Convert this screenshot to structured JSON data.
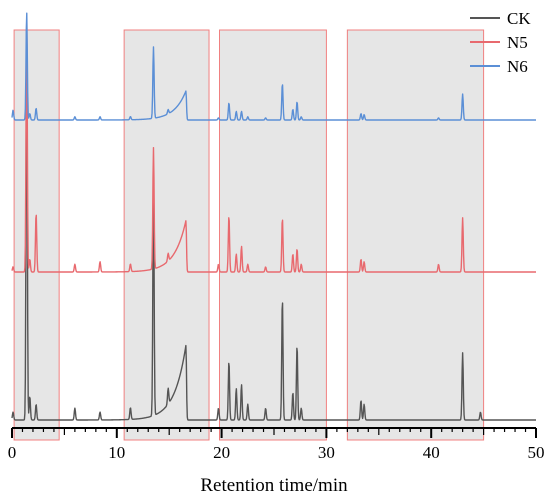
{
  "chart_data": {
    "type": "line",
    "xlabel": "Retention time/min",
    "ylabel": "",
    "xlim": [
      0,
      50
    ],
    "xticks": [
      0,
      10,
      20,
      30,
      40,
      50
    ],
    "grid": false,
    "legend": {
      "placement": "top-right",
      "entries": [
        "CK",
        "N5",
        "N6"
      ]
    },
    "highlight_regions": [
      {
        "x": [
          0.2,
          4.5
        ]
      },
      {
        "x": [
          10.7,
          18.8
        ]
      },
      {
        "x": [
          19.8,
          30.0
        ]
      },
      {
        "x": [
          32.0,
          45.0
        ]
      }
    ],
    "highlight_fill": "#e6e6e6",
    "highlight_stroke": "#f08080",
    "series": [
      {
        "name": "CK",
        "color": "#555555",
        "baseline": 0,
        "peaks": [
          [
            0.1,
            2
          ],
          [
            1.4,
            100
          ],
          [
            1.7,
            6
          ],
          [
            2.3,
            4
          ],
          [
            6.0,
            3
          ],
          [
            8.4,
            2
          ],
          [
            11.3,
            3
          ],
          [
            13.5,
            60
          ],
          [
            14.9,
            4
          ],
          [
            16.6,
            19
          ],
          [
            19.7,
            3
          ],
          [
            20.7,
            15
          ],
          [
            21.4,
            8
          ],
          [
            21.9,
            9
          ],
          [
            22.5,
            4
          ],
          [
            24.2,
            3
          ],
          [
            25.8,
            31
          ],
          [
            26.8,
            7
          ],
          [
            27.2,
            19
          ],
          [
            27.6,
            3
          ],
          [
            33.3,
            5
          ],
          [
            33.6,
            4
          ],
          [
            43.0,
            17
          ],
          [
            44.7,
            2
          ]
        ]
      },
      {
        "name": "N5",
        "color": "#e8696e",
        "baseline": 0,
        "peaks": [
          [
            0.1,
            2
          ],
          [
            1.4,
            100
          ],
          [
            1.7,
            5
          ],
          [
            2.3,
            23
          ],
          [
            6.0,
            3
          ],
          [
            8.4,
            4
          ],
          [
            11.3,
            3
          ],
          [
            13.5,
            47
          ],
          [
            14.9,
            3
          ],
          [
            16.6,
            20
          ],
          [
            19.7,
            3
          ],
          [
            20.7,
            22
          ],
          [
            21.4,
            7
          ],
          [
            21.9,
            10
          ],
          [
            22.5,
            3
          ],
          [
            24.2,
            2
          ],
          [
            25.8,
            21
          ],
          [
            26.8,
            7
          ],
          [
            27.2,
            9
          ],
          [
            27.6,
            3
          ],
          [
            33.3,
            5
          ],
          [
            33.6,
            4
          ],
          [
            40.7,
            3
          ],
          [
            43.0,
            21
          ]
        ]
      },
      {
        "name": "N6",
        "color": "#5b8fd6",
        "baseline": 0,
        "peaks": [
          [
            0.1,
            9
          ],
          [
            1.4,
            100
          ],
          [
            1.7,
            6
          ],
          [
            2.3,
            11
          ],
          [
            6.0,
            3
          ],
          [
            8.4,
            3
          ],
          [
            11.3,
            3
          ],
          [
            13.5,
            66
          ],
          [
            14.9,
            4
          ],
          [
            16.6,
            27
          ],
          [
            19.7,
            2
          ],
          [
            20.7,
            16
          ],
          [
            21.4,
            8
          ],
          [
            21.9,
            8
          ],
          [
            22.5,
            3
          ],
          [
            24.2,
            2
          ],
          [
            25.8,
            34
          ],
          [
            26.8,
            10
          ],
          [
            27.2,
            17
          ],
          [
            27.6,
            3
          ],
          [
            33.3,
            6
          ],
          [
            33.6,
            5
          ],
          [
            40.7,
            2
          ],
          [
            43.0,
            24
          ]
        ]
      }
    ]
  }
}
